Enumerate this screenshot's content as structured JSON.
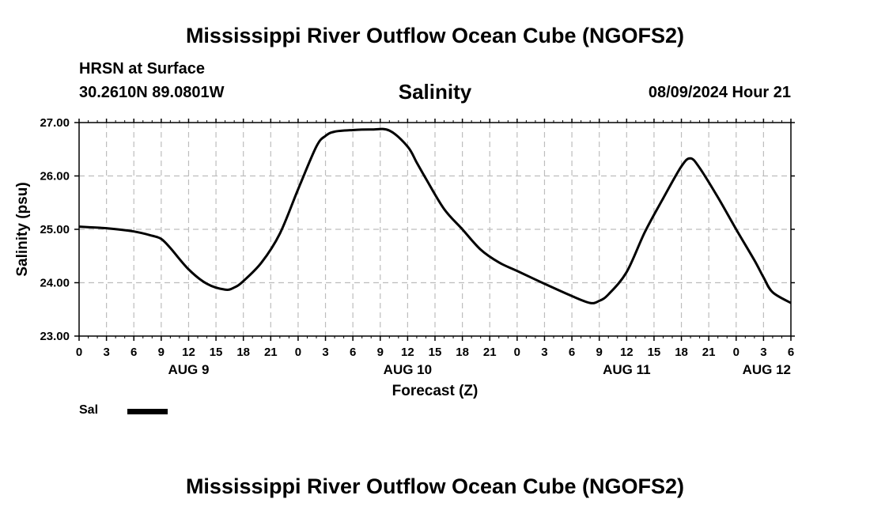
{
  "header": {
    "title": "Mississippi River Outflow Ocean Cube (NGOFS2)",
    "station": "HRSN at Surface",
    "coords": "30.2610N  89.0801W",
    "variable": "Salinity",
    "timestamp": "08/09/2024 Hour 21"
  },
  "footer": {
    "title": "Mississippi River Outflow Ocean Cube (NGOFS2)"
  },
  "legend": {
    "label": "Sal",
    "color": "#000000"
  },
  "chart_data": {
    "type": "line",
    "title": "Salinity",
    "xlabel": "Forecast (Z)",
    "ylabel": "Salinity (psu)",
    "xlim": [
      0,
      78
    ],
    "ylim": [
      23,
      27
    ],
    "grid": true,
    "x_ticks": [
      0,
      3,
      6,
      9,
      12,
      15,
      18,
      21,
      24,
      27,
      30,
      33,
      36,
      39,
      42,
      45,
      48,
      51,
      54,
      57,
      60,
      63,
      66,
      69,
      72,
      75,
      78
    ],
    "x_tick_labels": [
      "0",
      "3",
      "6",
      "9",
      "12",
      "15",
      "18",
      "21",
      "0",
      "3",
      "6",
      "9",
      "12",
      "15",
      "18",
      "21",
      "0",
      "3",
      "6",
      "9",
      "12",
      "15",
      "18",
      "21",
      "0",
      "3",
      "6"
    ],
    "date_labels": [
      {
        "x": 12,
        "label": "AUG 9"
      },
      {
        "x": 36,
        "label": "AUG 10"
      },
      {
        "x": 60,
        "label": "AUG 11"
      },
      {
        "x": 78,
        "label": "AUG 12"
      }
    ],
    "y_ticks": [
      23,
      24,
      25,
      26,
      27
    ],
    "y_tick_labels": [
      "23.00",
      "24.00",
      "25.00",
      "26.00",
      "27.00"
    ],
    "series": [
      {
        "name": "Sal",
        "x": [
          0,
          3,
          6,
          8,
          9,
          10,
          12,
          14,
          16,
          17,
          18,
          20,
          22,
          24,
          26,
          27,
          28,
          30,
          32,
          34,
          36,
          37,
          38,
          40,
          42,
          44,
          46,
          48,
          51,
          54,
          56,
          57,
          58,
          60,
          62,
          64,
          66,
          67,
          68,
          70,
          72,
          74,
          75,
          76,
          78
        ],
        "values": [
          25.05,
          25.02,
          24.96,
          24.88,
          24.82,
          24.65,
          24.25,
          23.98,
          23.87,
          23.91,
          24.03,
          24.38,
          24.92,
          25.75,
          26.55,
          26.75,
          26.83,
          26.86,
          26.87,
          26.85,
          26.55,
          26.25,
          25.95,
          25.38,
          25.0,
          24.62,
          24.38,
          24.22,
          23.98,
          23.75,
          23.62,
          23.66,
          23.78,
          24.2,
          24.95,
          25.58,
          26.18,
          26.33,
          26.15,
          25.6,
          25.0,
          24.42,
          24.1,
          23.82,
          23.62
        ]
      }
    ]
  }
}
